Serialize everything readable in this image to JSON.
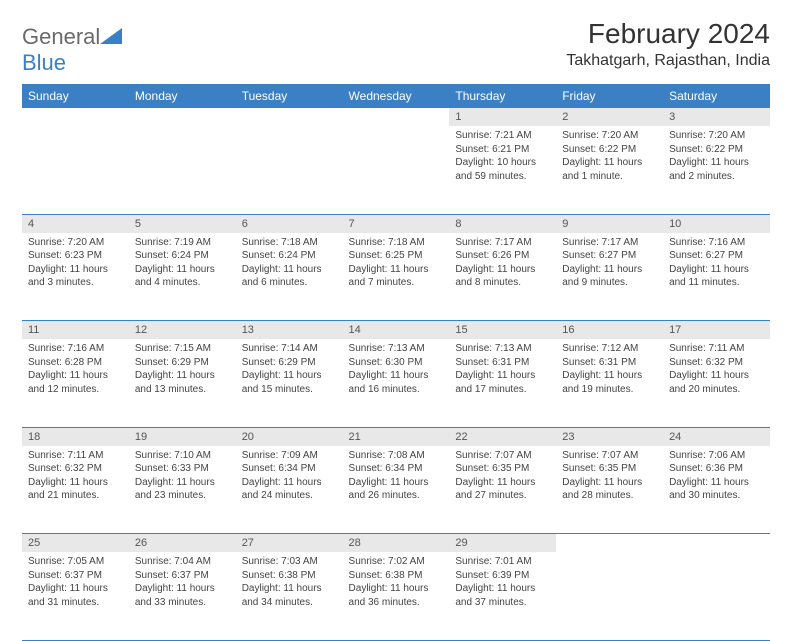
{
  "logo": {
    "brand1": "General",
    "brand2": "Blue"
  },
  "title": "February 2024",
  "location": "Takhatgarh, Rajasthan, India",
  "colors": {
    "header_bg": "#3b7fc4",
    "header_text": "#ffffff",
    "daynum_bg": "#e8e8e8",
    "row_border": "#3b7fc4",
    "body_text": "#444444",
    "title_text": "#333333"
  },
  "weekdays": [
    "Sunday",
    "Monday",
    "Tuesday",
    "Wednesday",
    "Thursday",
    "Friday",
    "Saturday"
  ],
  "weeks": [
    [
      null,
      null,
      null,
      null,
      {
        "n": "1",
        "sunrise": "Sunrise: 7:21 AM",
        "sunset": "Sunset: 6:21 PM",
        "daylight": "Daylight: 10 hours and 59 minutes."
      },
      {
        "n": "2",
        "sunrise": "Sunrise: 7:20 AM",
        "sunset": "Sunset: 6:22 PM",
        "daylight": "Daylight: 11 hours and 1 minute."
      },
      {
        "n": "3",
        "sunrise": "Sunrise: 7:20 AM",
        "sunset": "Sunset: 6:22 PM",
        "daylight": "Daylight: 11 hours and 2 minutes."
      }
    ],
    [
      {
        "n": "4",
        "sunrise": "Sunrise: 7:20 AM",
        "sunset": "Sunset: 6:23 PM",
        "daylight": "Daylight: 11 hours and 3 minutes."
      },
      {
        "n": "5",
        "sunrise": "Sunrise: 7:19 AM",
        "sunset": "Sunset: 6:24 PM",
        "daylight": "Daylight: 11 hours and 4 minutes."
      },
      {
        "n": "6",
        "sunrise": "Sunrise: 7:18 AM",
        "sunset": "Sunset: 6:24 PM",
        "daylight": "Daylight: 11 hours and 6 minutes."
      },
      {
        "n": "7",
        "sunrise": "Sunrise: 7:18 AM",
        "sunset": "Sunset: 6:25 PM",
        "daylight": "Daylight: 11 hours and 7 minutes."
      },
      {
        "n": "8",
        "sunrise": "Sunrise: 7:17 AM",
        "sunset": "Sunset: 6:26 PM",
        "daylight": "Daylight: 11 hours and 8 minutes."
      },
      {
        "n": "9",
        "sunrise": "Sunrise: 7:17 AM",
        "sunset": "Sunset: 6:27 PM",
        "daylight": "Daylight: 11 hours and 9 minutes."
      },
      {
        "n": "10",
        "sunrise": "Sunrise: 7:16 AM",
        "sunset": "Sunset: 6:27 PM",
        "daylight": "Daylight: 11 hours and 11 minutes."
      }
    ],
    [
      {
        "n": "11",
        "sunrise": "Sunrise: 7:16 AM",
        "sunset": "Sunset: 6:28 PM",
        "daylight": "Daylight: 11 hours and 12 minutes."
      },
      {
        "n": "12",
        "sunrise": "Sunrise: 7:15 AM",
        "sunset": "Sunset: 6:29 PM",
        "daylight": "Daylight: 11 hours and 13 minutes."
      },
      {
        "n": "13",
        "sunrise": "Sunrise: 7:14 AM",
        "sunset": "Sunset: 6:29 PM",
        "daylight": "Daylight: 11 hours and 15 minutes."
      },
      {
        "n": "14",
        "sunrise": "Sunrise: 7:13 AM",
        "sunset": "Sunset: 6:30 PM",
        "daylight": "Daylight: 11 hours and 16 minutes."
      },
      {
        "n": "15",
        "sunrise": "Sunrise: 7:13 AM",
        "sunset": "Sunset: 6:31 PM",
        "daylight": "Daylight: 11 hours and 17 minutes."
      },
      {
        "n": "16",
        "sunrise": "Sunrise: 7:12 AM",
        "sunset": "Sunset: 6:31 PM",
        "daylight": "Daylight: 11 hours and 19 minutes."
      },
      {
        "n": "17",
        "sunrise": "Sunrise: 7:11 AM",
        "sunset": "Sunset: 6:32 PM",
        "daylight": "Daylight: 11 hours and 20 minutes."
      }
    ],
    [
      {
        "n": "18",
        "sunrise": "Sunrise: 7:11 AM",
        "sunset": "Sunset: 6:32 PM",
        "daylight": "Daylight: 11 hours and 21 minutes."
      },
      {
        "n": "19",
        "sunrise": "Sunrise: 7:10 AM",
        "sunset": "Sunset: 6:33 PM",
        "daylight": "Daylight: 11 hours and 23 minutes."
      },
      {
        "n": "20",
        "sunrise": "Sunrise: 7:09 AM",
        "sunset": "Sunset: 6:34 PM",
        "daylight": "Daylight: 11 hours and 24 minutes."
      },
      {
        "n": "21",
        "sunrise": "Sunrise: 7:08 AM",
        "sunset": "Sunset: 6:34 PM",
        "daylight": "Daylight: 11 hours and 26 minutes."
      },
      {
        "n": "22",
        "sunrise": "Sunrise: 7:07 AM",
        "sunset": "Sunset: 6:35 PM",
        "daylight": "Daylight: 11 hours and 27 minutes."
      },
      {
        "n": "23",
        "sunrise": "Sunrise: 7:07 AM",
        "sunset": "Sunset: 6:35 PM",
        "daylight": "Daylight: 11 hours and 28 minutes."
      },
      {
        "n": "24",
        "sunrise": "Sunrise: 7:06 AM",
        "sunset": "Sunset: 6:36 PM",
        "daylight": "Daylight: 11 hours and 30 minutes."
      }
    ],
    [
      {
        "n": "25",
        "sunrise": "Sunrise: 7:05 AM",
        "sunset": "Sunset: 6:37 PM",
        "daylight": "Daylight: 11 hours and 31 minutes."
      },
      {
        "n": "26",
        "sunrise": "Sunrise: 7:04 AM",
        "sunset": "Sunset: 6:37 PM",
        "daylight": "Daylight: 11 hours and 33 minutes."
      },
      {
        "n": "27",
        "sunrise": "Sunrise: 7:03 AM",
        "sunset": "Sunset: 6:38 PM",
        "daylight": "Daylight: 11 hours and 34 minutes."
      },
      {
        "n": "28",
        "sunrise": "Sunrise: 7:02 AM",
        "sunset": "Sunset: 6:38 PM",
        "daylight": "Daylight: 11 hours and 36 minutes."
      },
      {
        "n": "29",
        "sunrise": "Sunrise: 7:01 AM",
        "sunset": "Sunset: 6:39 PM",
        "daylight": "Daylight: 11 hours and 37 minutes."
      },
      null,
      null
    ]
  ]
}
